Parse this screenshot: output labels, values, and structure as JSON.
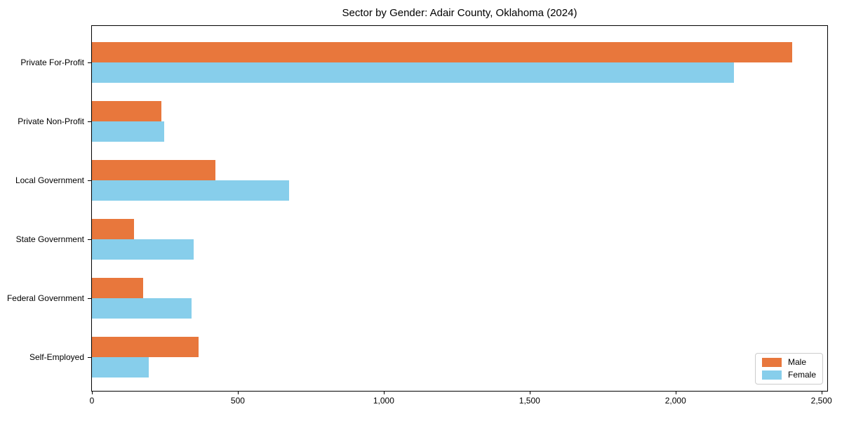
{
  "chart_data": {
    "type": "bar",
    "orientation": "horizontal",
    "title": "Sector by Gender: Adair County, Oklahoma (2024)",
    "categories": [
      "Private For-Profit",
      "Private Non-Profit",
      "Local Government",
      "State Government",
      "Federal Government",
      "Self-Employed"
    ],
    "series": [
      {
        "name": "Male",
        "color": "#e8773c",
        "values": [
          2400,
          238,
          423,
          144,
          175,
          365
        ]
      },
      {
        "name": "Female",
        "color": "#87ceeb",
        "values": [
          2200,
          248,
          675,
          349,
          341,
          195
        ]
      }
    ],
    "xlim": [
      0,
      2520
    ],
    "xticks": [
      0,
      500,
      1000,
      1500,
      2000,
      2500
    ],
    "xtick_labels": [
      "0",
      "500",
      "1,000",
      "1,500",
      "2,000",
      "2,500"
    ],
    "ylabel": "",
    "xlabel": "",
    "grid": false,
    "background_color": "#ffffff",
    "axis_color": "#000000",
    "legend": {
      "position": "lower right",
      "entries": [
        {
          "label": "Male",
          "color": "#e8773c"
        },
        {
          "label": "Female",
          "color": "#87ceeb"
        }
      ]
    }
  }
}
